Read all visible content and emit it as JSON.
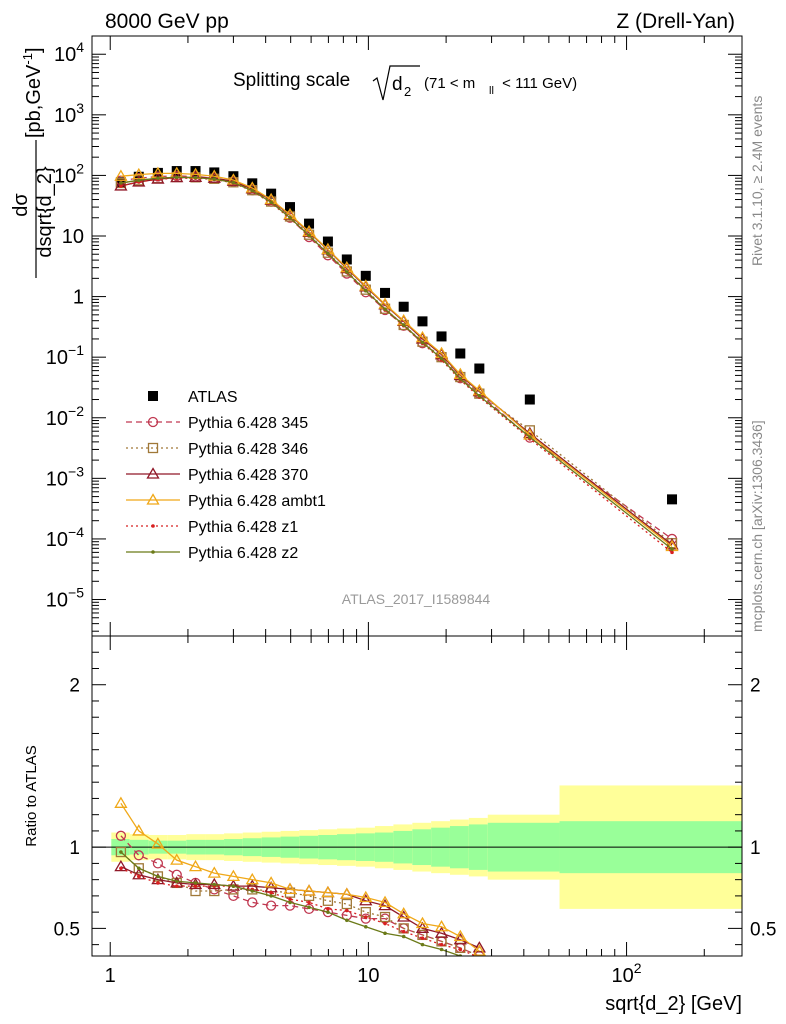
{
  "header": {
    "left": "8000 GeV pp",
    "right": "Z (Drell-Yan)"
  },
  "side_labels": {
    "rivet": "Rivet 3.1.10, ≥ 2.4M events",
    "mcplots": "mcplots.cern.ch [arXiv:1306.3436]"
  },
  "analysis_id": "ATLAS_2017_I1589844",
  "chart_data": [
    {
      "type": "scatter",
      "title": "Splitting scale √d₂ (71 < m_ll < 111 GeV)",
      "title_main": "Splitting scale",
      "title_var": "d",
      "title_sub": "2",
      "title_range": "(71 < m",
      "title_range_sub": "ll",
      "title_range_end": " < 111 GeV)",
      "ylabel": "dσ/dsqrt{d_2} [pb,GeV⁻¹]",
      "ylabel_num": "dσ",
      "ylabel_den": "dsqrt{d_2}",
      "ylabel_unit": "[pb,GeV",
      "ylabel_unit_sup": "-1",
      "xscale": "log",
      "yscale": "log",
      "xlim": [
        0.85,
        280
      ],
      "ylim": [
        2.5e-06,
        20000
      ],
      "ytick_labels": [
        {
          "v": 10000,
          "base": "10",
          "exp": "4"
        },
        {
          "v": 1000,
          "base": "10",
          "exp": "3"
        },
        {
          "v": 100,
          "base": "10",
          "exp": "2"
        },
        {
          "v": 10,
          "base": "10",
          "exp": ""
        },
        {
          "v": 1,
          "base": "1",
          "exp": ""
        },
        {
          "v": 0.1,
          "base": "10",
          "exp": "−1"
        },
        {
          "v": 0.01,
          "base": "10",
          "exp": "−2"
        },
        {
          "v": 0.001,
          "base": "10",
          "exp": "−3"
        },
        {
          "v": 0.0001,
          "base": "10",
          "exp": "−4"
        },
        {
          "v": 1e-05,
          "base": "10",
          "exp": "−5"
        }
      ],
      "legend_position": "left",
      "x": [
        1.1,
        1.29,
        1.53,
        1.81,
        2.14,
        2.53,
        3.0,
        3.55,
        4.2,
        4.97,
        5.89,
        6.97,
        8.25,
        9.77,
        11.6,
        13.7,
        16.2,
        19.2,
        22.7,
        26.9,
        42.2,
        150.0
      ],
      "series": [
        {
          "name": "ATLAS",
          "color": "#000000",
          "marker": "square",
          "values": [
            77,
            95,
            110,
            118,
            118,
            112,
            97,
            74,
            50,
            30,
            16,
            8.1,
            4.1,
            2.2,
            1.15,
            0.68,
            0.39,
            0.22,
            0.115,
            0.065,
            0.02,
            0.00045
          ]
        },
        {
          "name": "Pythia 6.428 345",
          "color": "#c03850",
          "marker": "circle",
          "dash": "6,4",
          "values": [
            82,
            90,
            96,
            98,
            96,
            90,
            78,
            57,
            37,
            20,
            9.6,
            4.8,
            2.4,
            1.18,
            0.6,
            0.33,
            0.17,
            0.1,
            0.045,
            0.025,
            0.0047,
            0.0001
          ]
        },
        {
          "name": "Pythia 6.428 346",
          "color": "#a07838",
          "marker": "square",
          "dash": "2,3",
          "values": [
            75,
            83,
            90,
            94,
            93,
            88,
            77,
            57,
            37,
            21,
            10.5,
            5.3,
            2.6,
            1.3,
            0.63,
            0.34,
            0.18,
            0.1,
            0.047,
            0.025,
            0.0062,
            8.5e-05
          ]
        },
        {
          "name": "Pythia 6.428 370",
          "color": "#901828",
          "marker": "triangle",
          "dash": "",
          "values": [
            67,
            78,
            87,
            92,
            93,
            90,
            80,
            60,
            39,
            22,
            11.5,
            5.9,
            2.9,
            1.45,
            0.73,
            0.39,
            0.2,
            0.11,
            0.05,
            0.027,
            0.0055,
            8e-05
          ]
        },
        {
          "name": "Pythia 6.428 ambt1",
          "color": "#f0a818",
          "marker": "triangle",
          "dash": "",
          "values": [
            97,
            103,
            108,
            108,
            104,
            97,
            84,
            62,
            40,
            22.5,
            11.8,
            6.0,
            3.0,
            1.5,
            0.75,
            0.4,
            0.21,
            0.115,
            0.052,
            0.028,
            0.0052,
            7.5e-05
          ]
        },
        {
          "name": "Pythia 6.428 z1",
          "color": "#d82020",
          "marker": "dot",
          "dash": "2,3",
          "values": [
            67,
            78,
            86,
            90,
            90,
            86,
            75,
            55,
            35,
            19.5,
            10.0,
            5.0,
            2.5,
            1.25,
            0.6,
            0.33,
            0.17,
            0.09,
            0.042,
            0.022,
            0.0045,
            6e-05
          ]
        },
        {
          "name": "Pythia 6.428 z2",
          "color": "#6b7a18",
          "marker": "dot",
          "dash": "",
          "values": [
            75,
            83,
            90,
            93,
            92,
            87,
            76,
            56,
            36,
            20,
            10.2,
            5.1,
            2.55,
            1.25,
            0.62,
            0.34,
            0.175,
            0.095,
            0.044,
            0.023,
            0.0048,
            6.8e-05
          ]
        }
      ]
    },
    {
      "type": "line",
      "ylabel": "Ratio to ATLAS",
      "xlabel": "sqrt{d_2} [GeV]",
      "xscale": "log",
      "xlim": [
        0.85,
        280
      ],
      "ylim": [
        0.33,
        2.3
      ],
      "yticks": [
        0.5,
        1,
        2
      ],
      "ytick_labels": [
        "0.5",
        "1",
        "2"
      ],
      "xtick_labels": [
        {
          "v": 1,
          "base": "1",
          "exp": ""
        },
        {
          "v": 10,
          "base": "10",
          "exp": ""
        },
        {
          "v": 100,
          "base": "10",
          "exp": "2"
        }
      ],
      "bin_edges": [
        1.01,
        1.19,
        1.41,
        1.67,
        1.97,
        2.33,
        2.76,
        3.26,
        3.86,
        4.57,
        5.4,
        6.39,
        7.56,
        8.94,
        10.6,
        12.5,
        14.8,
        17.5,
        20.7,
        24.5,
        29.0,
        55.0,
        280.0
      ],
      "band_inner": [
        0.05,
        0.045,
        0.04,
        0.04,
        0.045,
        0.045,
        0.05,
        0.055,
        0.06,
        0.065,
        0.07,
        0.075,
        0.08,
        0.085,
        0.09,
        0.1,
        0.11,
        0.12,
        0.13,
        0.14,
        0.15,
        0.16
      ],
      "band_outer": [
        0.09,
        0.08,
        0.075,
        0.075,
        0.08,
        0.08,
        0.085,
        0.09,
        0.095,
        0.1,
        0.105,
        0.11,
        0.115,
        0.12,
        0.13,
        0.14,
        0.15,
        0.16,
        0.17,
        0.18,
        0.2,
        0.38
      ],
      "band_inner_color": "#99ff99",
      "band_outer_color": "#ffff99",
      "x": [
        1.1,
        1.29,
        1.53,
        1.81,
        2.14,
        2.53,
        3.0,
        3.55,
        4.2,
        4.97,
        5.89,
        6.97,
        8.25,
        9.77,
        11.6,
        13.7,
        16.2,
        19.2,
        22.7,
        26.9
      ],
      "series": [
        {
          "name": "Pythia 6.428 345",
          "values": [
            1.07,
            0.95,
            0.9,
            0.83,
            0.78,
            0.74,
            0.7,
            0.66,
            0.64,
            0.64,
            0.62,
            0.6,
            0.58,
            0.56,
            0.56,
            0.5,
            0.46,
            0.42,
            0.38,
            0.33
          ]
        },
        {
          "name": "Pythia 6.428 346",
          "values": [
            0.97,
            0.87,
            0.82,
            0.78,
            0.73,
            0.73,
            0.74,
            0.74,
            0.73,
            0.72,
            0.7,
            0.67,
            0.65,
            0.6,
            0.57,
            0.5,
            0.46,
            0.42,
            0.38,
            0.33
          ]
        },
        {
          "name": "Pythia 6.428 370",
          "values": [
            0.88,
            0.83,
            0.8,
            0.78,
            0.77,
            0.77,
            0.76,
            0.76,
            0.75,
            0.74,
            0.73,
            0.72,
            0.71,
            0.67,
            0.64,
            0.57,
            0.5,
            0.47,
            0.43,
            0.38
          ]
        },
        {
          "name": "Pythia 6.428 ambt1",
          "values": [
            1.27,
            1.1,
            1.02,
            0.92,
            0.88,
            0.84,
            0.82,
            0.8,
            0.78,
            0.74,
            0.73,
            0.72,
            0.71,
            0.69,
            0.66,
            0.59,
            0.53,
            0.51,
            0.45,
            0.36
          ]
        },
        {
          "name": "Pythia 6.428 z1",
          "values": [
            0.87,
            0.82,
            0.78,
            0.76,
            0.76,
            0.76,
            0.76,
            0.74,
            0.72,
            0.68,
            0.66,
            0.62,
            0.61,
            0.57,
            0.53,
            0.48,
            0.44,
            0.4,
            0.37,
            0.32
          ]
        },
        {
          "name": "Pythia 6.428 z2",
          "values": [
            0.97,
            0.87,
            0.82,
            0.79,
            0.78,
            0.77,
            0.76,
            0.73,
            0.7,
            0.66,
            0.63,
            0.6,
            0.55,
            0.51,
            0.47,
            0.45,
            0.4,
            0.37,
            0.33,
            0.3
          ]
        }
      ]
    }
  ]
}
